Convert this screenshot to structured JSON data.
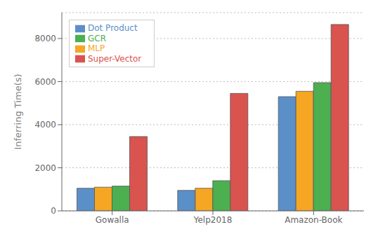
{
  "chart_data": {
    "type": "bar",
    "categories": [
      "Gowalla",
      "Yelp2018",
      "Amazon-Book"
    ],
    "series": [
      {
        "name": "Dot Product",
        "color": "#5b8fc8",
        "values": [
          1050,
          950,
          5300
        ]
      },
      {
        "name": "MLP",
        "color": "#f5a623",
        "values": [
          1100,
          1050,
          5550
        ]
      },
      {
        "name": "GCR",
        "color": "#4caf50",
        "values": [
          1150,
          1400,
          5950
        ]
      },
      {
        "name": "Super-Vector",
        "color": "#d9534f",
        "values": [
          3450,
          5450,
          8650
        ]
      }
    ],
    "ylabel": "Inferring Time(s)",
    "ylim": [
      0,
      9200
    ],
    "yticks": [
      0,
      2000,
      4000,
      6000,
      8000
    ],
    "grid": true,
    "legend": "upper left"
  }
}
